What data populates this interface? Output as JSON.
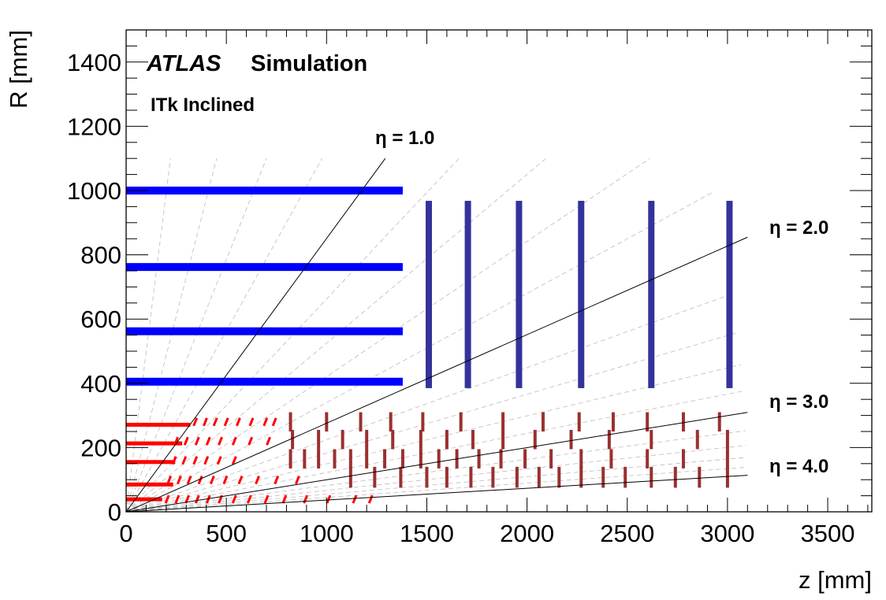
{
  "chart_data": {
    "type": "scatter",
    "title": "",
    "brand": "ATLAS",
    "subtitle": "Simulation",
    "layout_label": "ITk Inclined",
    "xlabel": "z [mm]",
    "ylabel": "R [mm]",
    "xlim": [
      0,
      3720
    ],
    "ylim": [
      0,
      1500
    ],
    "x_ticks": [
      0,
      500,
      1000,
      1500,
      2000,
      2500,
      3000,
      3500
    ],
    "y_ticks": [
      0,
      200,
      400,
      600,
      800,
      1000,
      1200,
      1400
    ],
    "grid": false,
    "colors": {
      "strip_barrel": "#0000ff",
      "strip_endcap": "#33339a",
      "pixel_barrel": "#ff0000",
      "pixel_endcap": "#9a3030",
      "eta_line": "#000000",
      "eta_guide": "#bbbbbb"
    },
    "eta_lines": [
      {
        "eta": 1.0,
        "label": "η = 1.0"
      },
      {
        "eta": 2.0,
        "label": "η = 2.0"
      },
      {
        "eta": 3.0,
        "label": "η = 3.0"
      },
      {
        "eta": 4.0,
        "label": "η = 4.0"
      }
    ],
    "eta_guides": [
      0.2,
      0.4,
      0.6,
      0.8,
      1.2,
      1.4,
      1.6,
      1.8,
      2.2,
      2.4,
      2.6,
      2.8,
      3.2,
      3.4,
      3.6,
      3.8
    ],
    "strip_barrel": [
      {
        "r": 1000,
        "z_max": 1380
      },
      {
        "r": 762,
        "z_max": 1380
      },
      {
        "r": 562,
        "z_max": 1380
      },
      {
        "r": 405,
        "z_max": 1380
      }
    ],
    "strip_endcap": [
      {
        "z": 1510,
        "r_min": 385,
        "r_max": 968
      },
      {
        "z": 1705,
        "r_min": 385,
        "r_max": 968
      },
      {
        "z": 1960,
        "r_min": 385,
        "r_max": 968
      },
      {
        "z": 2270,
        "r_min": 385,
        "r_max": 968
      },
      {
        "z": 2620,
        "r_min": 385,
        "r_max": 968
      },
      {
        "z": 3010,
        "r_min": 385,
        "r_max": 968
      }
    ],
    "pixel_flat_barrel": [
      {
        "r": 39,
        "z_max": 180
      },
      {
        "r": 85,
        "z_max": 235
      },
      {
        "r": 155,
        "z_max": 245
      },
      {
        "r": 213,
        "z_max": 280
      },
      {
        "r": 271,
        "z_max": 320
      }
    ],
    "pixel_inclined_rings": [
      {
        "r": 39,
        "z": [
          205,
          255,
          305,
          355,
          410,
          470,
          540,
          615,
          700,
          790,
          895,
          1010,
          1140,
          1220
        ]
      },
      {
        "r": 99,
        "z": [
          215,
          265,
          315,
          370,
          430,
          495,
          570,
          655,
          750,
          855
        ]
      },
      {
        "r": 160,
        "z": [
          240,
          290,
          345,
          400,
          465,
          540
        ]
      },
      {
        "r": 220,
        "z": [
          250,
          300,
          355,
          410,
          470,
          540,
          620,
          710
        ]
      },
      {
        "r": 280,
        "z": [
          345,
          395,
          445,
          500,
          560,
          625,
          695,
          740
        ]
      }
    ],
    "pixel_endcap_rings": [
      {
        "r_min": 75,
        "r_max": 140,
        "z": [
          1120,
          1240,
          1370,
          1500,
          1600,
          1720,
          1830,
          1950,
          2060,
          2160,
          2270,
          2380,
          2490,
          2620,
          2740,
          2860,
          3000
        ]
      },
      {
        "r_min": 135,
        "r_max": 195,
        "z": [
          820,
          890,
          960,
          1040,
          1120,
          1200,
          1290,
          1380,
          1470,
          1560,
          1650,
          1760,
          1870,
          1990,
          2120,
          2270,
          2420,
          2600,
          2780,
          3000
        ]
      },
      {
        "r_min": 195,
        "r_max": 255,
        "z": [
          830,
          960,
          1080,
          1200,
          1330,
          1470,
          1600,
          1730,
          1880,
          2040,
          2220,
          2410,
          2620,
          2850,
          3000
        ]
      },
      {
        "r_min": 250,
        "r_max": 310,
        "z": [
          820,
          1000,
          1170,
          1320,
          1480,
          1670,
          1880,
          2080,
          2260,
          2430,
          2600,
          2780,
          2960
        ]
      }
    ]
  }
}
